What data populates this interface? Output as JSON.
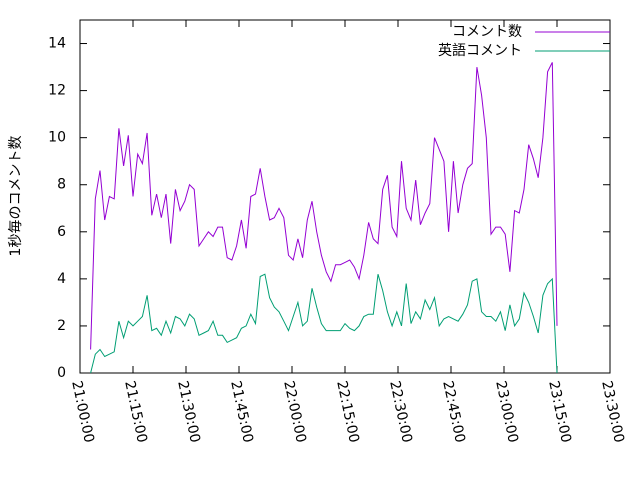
{
  "chart_data": {
    "type": "line",
    "ylabel": "1秒毎のコメント数",
    "x": [
      "21:03:00",
      "21:04:20",
      "21:05:40",
      "21:07:00",
      "21:08:20",
      "21:09:40",
      "21:11:00",
      "21:12:20",
      "21:13:40",
      "21:15:00",
      "21:16:20",
      "21:17:40",
      "21:19:00",
      "21:20:20",
      "21:21:40",
      "21:23:00",
      "21:24:20",
      "21:25:40",
      "21:27:00",
      "21:28:20",
      "21:29:40",
      "21:31:00",
      "21:32:20",
      "21:33:40",
      "21:35:00",
      "21:36:20",
      "21:37:40",
      "21:39:00",
      "21:40:20",
      "21:41:40",
      "21:43:00",
      "21:44:20",
      "21:45:40",
      "21:47:00",
      "21:48:20",
      "21:49:40",
      "21:51:00",
      "21:52:20",
      "21:53:40",
      "21:55:00",
      "21:56:20",
      "21:57:40",
      "21:59:00",
      "22:00:20",
      "22:01:40",
      "22:03:00",
      "22:04:20",
      "22:05:40",
      "22:07:00",
      "22:08:20",
      "22:09:40",
      "22:11:00",
      "22:12:20",
      "22:13:40",
      "22:15:00",
      "22:16:20",
      "22:17:40",
      "22:19:00",
      "22:20:20",
      "22:21:40",
      "22:23:00",
      "22:24:20",
      "22:25:40",
      "22:27:00",
      "22:28:20",
      "22:29:40",
      "22:31:00",
      "22:32:20",
      "22:33:40",
      "22:35:00",
      "22:36:20",
      "22:37:40",
      "22:39:00",
      "22:40:20",
      "22:41:40",
      "22:43:00",
      "22:44:20",
      "22:45:40",
      "22:47:00",
      "22:48:20",
      "22:49:40",
      "22:51:00",
      "22:52:20",
      "22:53:40",
      "22:55:00",
      "22:56:20",
      "22:57:40",
      "22:59:00",
      "23:00:20",
      "23:01:40",
      "23:03:00",
      "23:04:20",
      "23:05:40",
      "23:07:00",
      "23:08:20",
      "23:09:40",
      "23:11:00",
      "23:12:20",
      "23:13:40",
      "23:15:00"
    ],
    "series": [
      {
        "name": "コメント数",
        "color": "#9400d3",
        "values": [
          1.0,
          7.4,
          8.6,
          6.5,
          7.5,
          7.4,
          10.4,
          8.8,
          10.1,
          7.5,
          9.3,
          8.9,
          10.2,
          6.7,
          7.6,
          6.6,
          7.6,
          5.5,
          7.8,
          6.9,
          7.3,
          8.0,
          7.8,
          5.4,
          5.7,
          6.0,
          5.8,
          6.2,
          6.2,
          4.9,
          4.8,
          5.4,
          6.5,
          5.3,
          7.5,
          7.6,
          8.7,
          7.5,
          6.5,
          6.6,
          7.0,
          6.6,
          5.0,
          4.8,
          5.7,
          4.9,
          6.5,
          7.3,
          6.0,
          5.0,
          4.3,
          3.9,
          4.6,
          4.6,
          4.7,
          4.8,
          4.5,
          4.0,
          5.0,
          6.4,
          5.7,
          5.5,
          7.8,
          8.4,
          6.2,
          5.8,
          9.0,
          7.0,
          6.5,
          8.2,
          6.3,
          6.8,
          7.2,
          10.0,
          9.5,
          9.0,
          6.0,
          9.0,
          6.8,
          8.0,
          8.7,
          8.9,
          13.0,
          11.8,
          10.0,
          5.9,
          6.2,
          6.2,
          5.9,
          4.3,
          6.9,
          6.8,
          7.8,
          9.7,
          9.1,
          8.3,
          10.0,
          12.8,
          13.2,
          2.0
        ]
      },
      {
        "name": "英語コメント",
        "color": "#009e73",
        "values": [
          0.0,
          0.8,
          1.0,
          0.7,
          0.8,
          0.9,
          2.2,
          1.5,
          2.2,
          2.0,
          2.2,
          2.4,
          3.3,
          1.8,
          1.9,
          1.6,
          2.2,
          1.7,
          2.4,
          2.3,
          2.0,
          2.5,
          2.3,
          1.6,
          1.7,
          1.8,
          2.2,
          1.6,
          1.6,
          1.3,
          1.4,
          1.5,
          1.9,
          2.0,
          2.5,
          2.1,
          4.1,
          4.2,
          3.2,
          2.8,
          2.6,
          2.2,
          1.8,
          2.4,
          3.0,
          2.0,
          2.2,
          3.6,
          2.8,
          2.1,
          1.8,
          1.8,
          1.8,
          1.8,
          2.1,
          1.9,
          1.8,
          2.0,
          2.4,
          2.5,
          2.5,
          4.2,
          3.5,
          2.6,
          2.0,
          2.6,
          2.0,
          3.8,
          2.1,
          2.6,
          2.3,
          3.1,
          2.7,
          3.2,
          2.0,
          2.3,
          2.4,
          2.3,
          2.2,
          2.5,
          2.9,
          3.9,
          4.0,
          2.6,
          2.4,
          2.4,
          2.2,
          2.6,
          1.8,
          2.9,
          2.0,
          2.3,
          3.4,
          3.0,
          2.4,
          1.7,
          3.3,
          3.8,
          4.0,
          0.0
        ]
      }
    ],
    "xlim": [
      "21:00:00",
      "23:30:00"
    ],
    "xticks": [
      "21:00:00",
      "21:15:00",
      "21:30:00",
      "21:45:00",
      "22:00:00",
      "22:15:00",
      "22:30:00",
      "22:45:00",
      "23:00:00",
      "23:15:00",
      "23:30:00"
    ],
    "ylim": [
      0,
      15
    ],
    "yticks": [
      0,
      2,
      4,
      6,
      8,
      10,
      12,
      14
    ],
    "legend": "top-right"
  }
}
